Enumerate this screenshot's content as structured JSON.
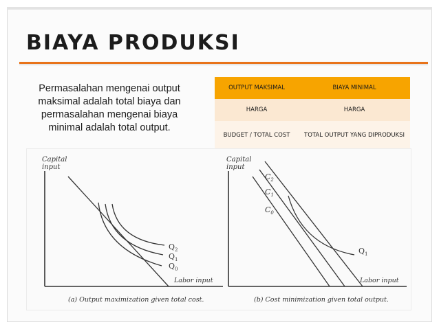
{
  "slide": {
    "title": "BIAYA PRODUKSI",
    "body_text": "Permasalahan mengenai output maksimal adalah total biaya dan permasalahan mengenai biaya minimal adalah total output.",
    "accent_color": "#e8731a"
  },
  "table": {
    "headers": [
      "OUTPUT MAKSIMAL",
      "BIAYA MINIMAL"
    ],
    "rows": [
      [
        "HARGA",
        "HARGA"
      ],
      [
        "BUDGET / TOTAL COST",
        "TOTAL OUTPUT YANG DIPRODUKSI"
      ]
    ],
    "header_color": "#f7a400"
  },
  "figure": {
    "left": {
      "y_axis_label": [
        "Capital",
        "input"
      ],
      "x_axis_label": "Labor input",
      "curve_labels": [
        "Q",
        "Q",
        "Q"
      ],
      "curve_subscripts": [
        "2",
        "1",
        "0"
      ],
      "caption": "(a)  Output maximization given total cost."
    },
    "right": {
      "y_axis_label": [
        "Capital",
        "input"
      ],
      "x_axis_label": "Labor input",
      "line_labels": [
        "C",
        "C",
        "C"
      ],
      "line_subscripts": [
        "2",
        "1",
        "0"
      ],
      "curve_label": "Q",
      "curve_subscript": "1",
      "caption": "(b)  Cost minimization given total output."
    }
  }
}
